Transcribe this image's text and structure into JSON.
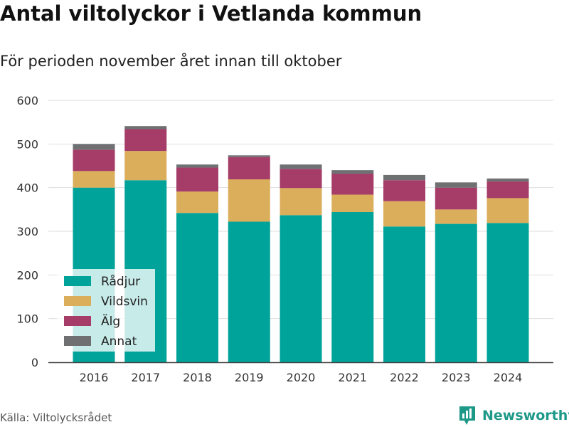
{
  "title": "Antal viltolyckor i Vetlanda kommun",
  "subtitle": "För perioden november året innan till oktober",
  "source": "Källa: Viltolycksrådet",
  "brand": {
    "name": "Newsworthy",
    "icon": "newsworthy-logo-icon",
    "color": "#1e9988"
  },
  "chart_data": {
    "type": "bar",
    "stacked": true,
    "title": "Antal viltolyckor i Vetlanda kommun",
    "subtitle": "För perioden november året innan till oktober",
    "xlabel": "",
    "ylabel": "",
    "ylim": [
      0,
      600
    ],
    "yticks": [
      0,
      100,
      200,
      300,
      400,
      500,
      600
    ],
    "grid": true,
    "legend_position": "bottom-left",
    "categories": [
      "2016",
      "2017",
      "2018",
      "2019",
      "2020",
      "2021",
      "2022",
      "2023",
      "2024"
    ],
    "series": [
      {
        "name": "Rådjur",
        "color": "#00a39a",
        "values": [
          400,
          417,
          342,
          322,
          337,
          344,
          311,
          317,
          319
        ]
      },
      {
        "name": "Vildsvin",
        "color": "#dbae5c",
        "values": [
          38,
          67,
          49,
          97,
          62,
          40,
          58,
          33,
          57
        ]
      },
      {
        "name": "Älg",
        "color": "#a63c68",
        "values": [
          49,
          50,
          55,
          51,
          44,
          48,
          48,
          50,
          38
        ]
      },
      {
        "name": "Annat",
        "color": "#6e7072",
        "values": [
          13,
          7,
          7,
          4,
          10,
          8,
          12,
          12,
          7
        ]
      }
    ]
  }
}
